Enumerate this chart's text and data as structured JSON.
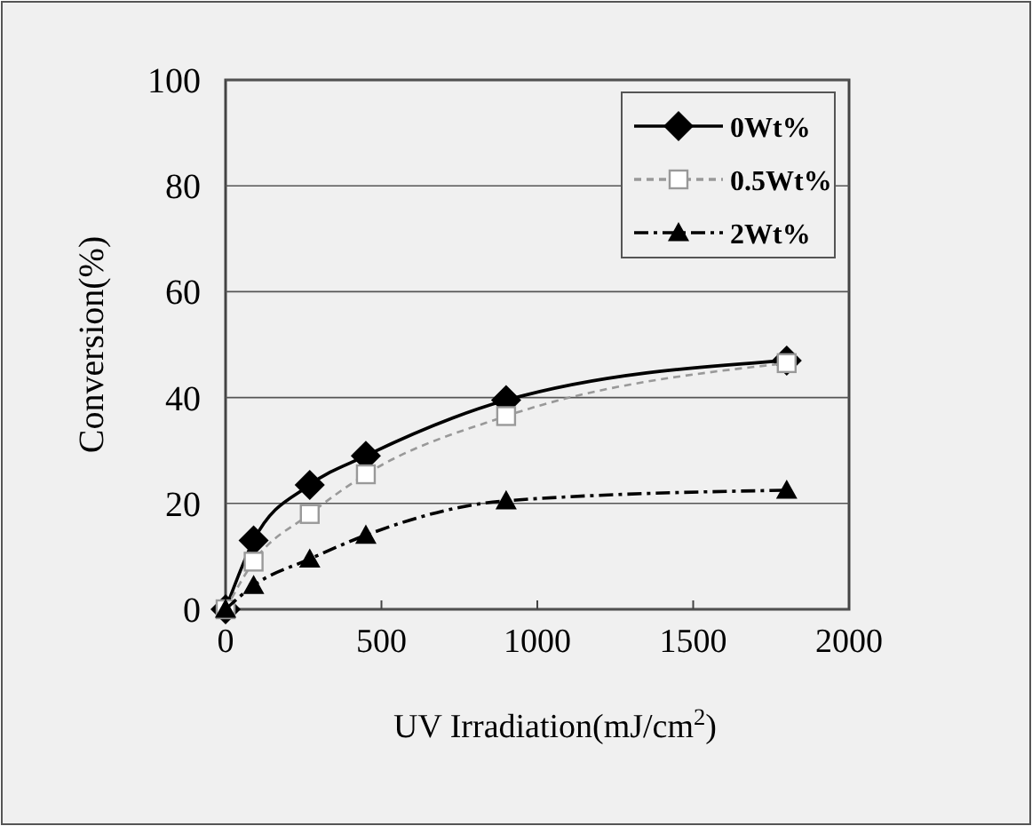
{
  "chart_data": {
    "type": "line",
    "xlabel": "UV Irradiation(mJ/cm$^{2}$)",
    "ylabel": "Conversion(%)",
    "x": [
      0,
      90,
      270,
      450,
      900,
      1800
    ],
    "series": [
      {
        "name": "0Wt%",
        "color": "#000000",
        "values": [
          0,
          13,
          23.5,
          29,
          39.5,
          47
        ],
        "marker": "diamond",
        "line_style": "solid"
      },
      {
        "name": "0.5Wt%",
        "color": "#999999",
        "values": [
          0,
          9,
          18,
          25.5,
          36.5,
          46.5
        ],
        "marker": "square",
        "line_style": "dashed"
      },
      {
        "name": "2Wt%",
        "color": "#000000",
        "values": [
          0,
          4.5,
          9.5,
          14,
          20.5,
          22.5
        ],
        "marker": "triangle",
        "line_style": "dashdot"
      }
    ],
    "xlim": [
      0,
      2000
    ],
    "xticks": [
      0,
      500,
      1000,
      1500,
      2000
    ],
    "ylim": [
      0,
      100
    ],
    "yticks": [
      0,
      20,
      40,
      60,
      80,
      100
    ],
    "grid": "y",
    "legend": "top right"
  }
}
